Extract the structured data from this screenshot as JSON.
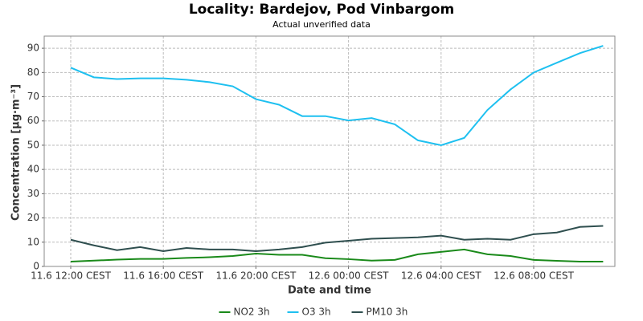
{
  "chart_data": {
    "type": "line",
    "title": "Locality: Bardejov, Pod Vinbargom",
    "subtitle": "Actual unverified data",
    "x_label": "Date and time",
    "y_label": "Concentration [µg·m⁻³]",
    "categories": [
      "11.6 12:00 CEST",
      null,
      null,
      null,
      "11.6 16:00 CEST",
      null,
      null,
      null,
      "11.6 20:00 CEST",
      null,
      null,
      null,
      "12.6 00:00 CEST",
      null,
      null,
      null,
      "12.6 04:00 CEST",
      null,
      null,
      null,
      "12.6 08:00 CEST",
      null,
      null,
      null
    ],
    "series": [
      {
        "name": "NO2 3h",
        "color": "#1a8a1a",
        "values": [
          2,
          2.4,
          2.8,
          3.1,
          3.1,
          3.5,
          3.8,
          4.3,
          5.3,
          4.8,
          4.8,
          3.4,
          3,
          2.4,
          2.7,
          5,
          6,
          7,
          5,
          4.3,
          2.7,
          2.3,
          2,
          2
        ]
      },
      {
        "name": "O3 3h",
        "color": "#1ec0f0",
        "values": [
          82,
          78,
          77.3,
          77.6,
          77.6,
          77,
          76,
          74.3,
          69,
          66.7,
          62,
          62,
          60.2,
          61.2,
          58.6,
          52,
          50,
          53,
          64.5,
          73,
          80,
          84,
          88,
          91
        ]
      },
      {
        "name": "PM10 3h",
        "color": "#2f4f4f",
        "values": [
          11,
          8.7,
          6.7,
          8,
          6.3,
          7.6,
          7,
          7,
          6.3,
          7,
          8,
          9.8,
          10.6,
          11.4,
          11.7,
          12,
          12.7,
          11,
          11.4,
          11,
          13.3,
          14,
          16.3,
          16.7
        ]
      }
    ],
    "ylim": [
      0,
      95
    ],
    "yticks": [
      0,
      10,
      20,
      30,
      40,
      50,
      60,
      70,
      80,
      90
    ],
    "grid": true,
    "legend": "bottom"
  }
}
